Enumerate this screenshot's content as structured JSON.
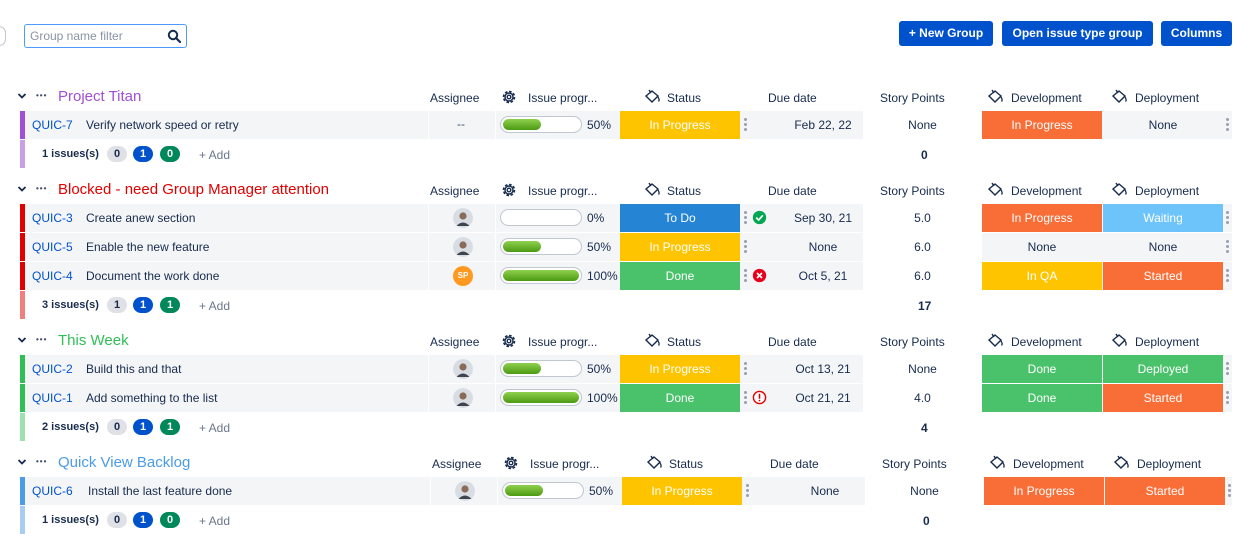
{
  "toolbar": {
    "filter_placeholder": "Group name filter",
    "new_group_label": "+ New Group",
    "open_issue_type_label": "Open issue type group",
    "columns_label": "Columns"
  },
  "columns": {
    "assignee": "Assignee",
    "progress": "Issue progr...",
    "status": "Status",
    "due": "Due date",
    "points": "Story Points",
    "development": "Development",
    "deployment": "Deployment"
  },
  "colors": {
    "in_progress": "#ffc400",
    "to_do": "#2684d4",
    "done": "#4ac26b",
    "dev_in_progress": "#f96d37",
    "waiting": "#6cc4fa",
    "started": "#f96d37",
    "deployed": "#4ac26b"
  },
  "groups": [
    {
      "title": "Project Titan",
      "color": "#a14fd6",
      "footer_color": "#c9a0e6",
      "rows": [
        {
          "key": "QUIC-7",
          "summary": "Verify network speed or retry",
          "assignee": "--",
          "progress": 0.5,
          "progress_text": "50%",
          "status": "In Progress",
          "status_color": "#ffc400",
          "due": "Feb 22, 22",
          "due_icon": "",
          "points": "None",
          "development": "In Progress",
          "dev_color": "#f96d37",
          "deployment": "None",
          "dep_color": ""
        }
      ],
      "footer": {
        "count": "1 issues(s)",
        "grey": "0",
        "blue": "1",
        "green": "0",
        "add": "+ Add",
        "points_total": "0"
      }
    },
    {
      "title": "Blocked - need Group Manager attention",
      "color": "#e00000",
      "footer_color": "#f08080",
      "rows": [
        {
          "key": "QUIC-3",
          "summary": "Create anew section",
          "assignee": "avatar",
          "progress": 0.0,
          "progress_text": "0%",
          "status": "To Do",
          "status_color": "#2684d4",
          "due": "Sep 30, 21",
          "due_icon": "check-circle-icon",
          "points": "5.0",
          "development": "In Progress",
          "dev_color": "#f96d37",
          "deployment": "Waiting",
          "dep_color": "#6cc4fa"
        },
        {
          "key": "QUIC-5",
          "summary": "Enable the new feature",
          "assignee": "avatar",
          "progress": 0.5,
          "progress_text": "50%",
          "status": "In Progress",
          "status_color": "#ffc400",
          "due": "None",
          "due_icon": "",
          "points": "6.0",
          "development": "None",
          "dev_color": "",
          "deployment": "None",
          "dep_color": ""
        },
        {
          "key": "QUIC-4",
          "summary": "Document the work done",
          "assignee": "SP",
          "progress": 1.0,
          "progress_text": "100%",
          "status": "Done",
          "status_color": "#4ac26b",
          "due": "Oct 5, 21",
          "due_icon": "error-x-icon",
          "points": "6.0",
          "development": "In QA",
          "dev_color": "#ffc400",
          "deployment": "Started",
          "dep_color": "#f96d37"
        }
      ],
      "footer": {
        "count": "3 issues(s)",
        "grey": "1",
        "blue": "1",
        "green": "1",
        "add": "+ Add",
        "points_total": "17"
      }
    },
    {
      "title": "This Week",
      "color": "#2fbf55",
      "footer_color": "#9fe0b0",
      "rows": [
        {
          "key": "QUIC-2",
          "summary": "Build this and that",
          "assignee": "avatar",
          "progress": 0.5,
          "progress_text": "50%",
          "status": "In Progress",
          "status_color": "#ffc400",
          "due": "Oct 13, 21",
          "due_icon": "",
          "points": "None",
          "development": "Done",
          "dev_color": "#4ac26b",
          "deployment": "Deployed",
          "dep_color": "#4ac26b"
        },
        {
          "key": "QUIC-1",
          "summary": "Add something to the list",
          "assignee": "avatar",
          "progress": 1.0,
          "progress_text": "100%",
          "status": "Done",
          "status_color": "#4ac26b",
          "due": "Oct 21, 21",
          "due_icon": "warning-circle-icon",
          "points": "4.0",
          "development": "Done",
          "dev_color": "#4ac26b",
          "deployment": "Started",
          "dep_color": "#f96d37"
        }
      ],
      "footer": {
        "count": "2 issues(s)",
        "grey": "0",
        "blue": "1",
        "green": "1",
        "add": "+ Add",
        "points_total": "4"
      }
    },
    {
      "title": "Quick View Backlog",
      "color": "#4a9be8",
      "footer_color": "#a8ccf2",
      "rows": [
        {
          "key": "QUIC-6",
          "summary": "Install the last feature done",
          "assignee": "avatar",
          "progress": 0.5,
          "progress_text": "50%",
          "status": "In Progress",
          "status_color": "#ffc400",
          "due": "None",
          "due_icon": "",
          "points": "None",
          "development": "In Progress",
          "dev_color": "#f96d37",
          "deployment": "Started",
          "dep_color": "#f96d37"
        }
      ],
      "footer": {
        "count": "1 issues(s)",
        "grey": "0",
        "blue": "1",
        "green": "0",
        "add": "+ Add",
        "points_total": "0"
      }
    }
  ]
}
